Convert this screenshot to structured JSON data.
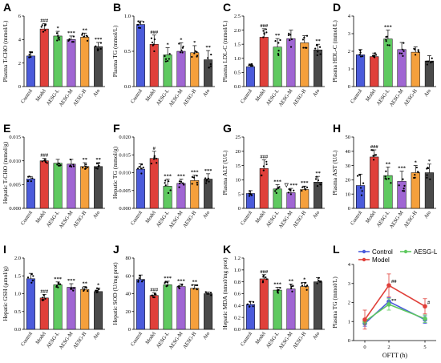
{
  "colors": {
    "Control": "#4b5bdb",
    "Model": "#e0403a",
    "AESG-L": "#5fc960",
    "AESG-M": "#a066d3",
    "AESG-H": "#f5a03c",
    "Ato": "#4a4a4a"
  },
  "chart_data": [
    {
      "id": "A",
      "type": "bar",
      "label": "A",
      "ylabel": "Plasma T-CHO  (mmol/L)",
      "categories": [
        "Control",
        "Model",
        "AESG-L",
        "AESG-M",
        "AESG-H",
        "Ato"
      ],
      "values": [
        2.6,
        4.9,
        4.3,
        4.0,
        4.2,
        3.4
      ],
      "errors": [
        0.35,
        0.45,
        0.4,
        0.3,
        0.35,
        0.35
      ],
      "sig": [
        "",
        "###",
        "*",
        "***",
        "**",
        "***"
      ],
      "ylim": [
        0,
        6
      ],
      "ticks": [
        0,
        2,
        4,
        6
      ],
      "tick_labels": [
        "0",
        "2",
        "4",
        "6"
      ]
    },
    {
      "id": "B",
      "type": "bar",
      "label": "B",
      "ylabel": "Plasma TG  (mmol/L)",
      "categories": [
        "Control",
        "Model",
        "AESG-L",
        "AESG-M",
        "AESG-H",
        "Ato"
      ],
      "values": [
        0.88,
        0.6,
        0.45,
        0.5,
        0.48,
        0.38
      ],
      "errors": [
        0.05,
        0.13,
        0.1,
        0.12,
        0.1,
        0.13
      ],
      "sig": [
        "",
        "###",
        "*",
        "*",
        "*",
        "**"
      ],
      "ylim": [
        0,
        1.0
      ],
      "ticks": [
        0,
        0.5,
        1.0
      ],
      "tick_labels": [
        "0.0",
        "0.5",
        "1.0"
      ]
    },
    {
      "id": "C",
      "type": "bar",
      "label": "C",
      "ylabel": "Plasma LDL-C  (mmol/L)",
      "categories": [
        "Control",
        "Model",
        "AESG-L",
        "AESG-M",
        "AESG-H",
        "Ato"
      ],
      "values": [
        0.7,
        1.75,
        1.4,
        1.7,
        1.55,
        1.3
      ],
      "errors": [
        0.1,
        0.3,
        0.3,
        0.3,
        0.25,
        0.2
      ],
      "sig": [
        "",
        "###",
        "**",
        "",
        "",
        "**"
      ],
      "ylim": [
        0,
        2.5
      ],
      "ticks": [
        0,
        0.5,
        1.0,
        1.5,
        2.0,
        2.5
      ],
      "tick_labels": [
        "0.0",
        "0.5",
        "1.0",
        "1.5",
        "2.0",
        "2.5"
      ]
    },
    {
      "id": "D",
      "type": "bar",
      "label": "D",
      "ylabel": "Plasma HDL-C  (mmol/L)",
      "categories": [
        "Control",
        "Model",
        "AESG-L",
        "AESG-M",
        "AESG-H",
        "Ato"
      ],
      "values": [
        1.8,
        1.7,
        2.7,
        2.1,
        1.95,
        1.45
      ],
      "errors": [
        0.3,
        0.2,
        0.5,
        0.4,
        0.3,
        0.3
      ],
      "sig": [
        "",
        "",
        "***",
        "",
        "",
        ""
      ],
      "ylim": [
        0,
        4
      ],
      "ticks": [
        0,
        1,
        2,
        3,
        4
      ],
      "tick_labels": [
        "0",
        "1",
        "2",
        "3",
        "4"
      ]
    },
    {
      "id": "E",
      "type": "bar",
      "label": "E",
      "ylabel": "Hepatic T-CHO  (mmol/g)",
      "categories": [
        "Control",
        "Model",
        "AESG-L",
        "AESG-M",
        "AESG-H",
        "Ato"
      ],
      "values": [
        0.0062,
        0.01,
        0.0095,
        0.0093,
        0.0088,
        0.0088
      ],
      "errors": [
        0.0005,
        0.0005,
        0.0008,
        0.001,
        0.0008,
        0.0008
      ],
      "sig": [
        "",
        "###",
        "",
        "",
        "**",
        "**"
      ],
      "ylim": [
        0,
        0.015
      ],
      "ticks": [
        0,
        0.005,
        0.01,
        0.015
      ],
      "tick_labels": [
        "0.000",
        "0.005",
        "0.010",
        "0.015"
      ]
    },
    {
      "id": "F",
      "type": "bar",
      "label": "F",
      "ylabel": "Hepatic TG  (mmol/g)",
      "categories": [
        "Control",
        "Model",
        "AESG-L",
        "AESG-M",
        "AESG-H",
        "Ato"
      ],
      "values": [
        0.011,
        0.014,
        0.0062,
        0.007,
        0.0078,
        0.0082
      ],
      "errors": [
        0.0015,
        0.002,
        0.002,
        0.0012,
        0.0015,
        0.0015
      ],
      "sig": [
        "",
        "#",
        "***",
        "***",
        "***",
        "***"
      ],
      "ylim": [
        0,
        0.02
      ],
      "ticks": [
        0,
        0.005,
        0.01,
        0.015,
        0.02
      ],
      "tick_labels": [
        "0.000",
        "0.005",
        "0.010",
        "0.015",
        "0.020"
      ]
    },
    {
      "id": "G",
      "type": "bar",
      "label": "G",
      "ylabel": "Plasma ALT  (U/L)",
      "categories": [
        "Control",
        "Model",
        "AESG-L",
        "AESG-M",
        "AESG-H",
        "Ato"
      ],
      "values": [
        5.2,
        14,
        6.8,
        5.5,
        6.6,
        9.2
      ],
      "errors": [
        1.0,
        3.0,
        1.5,
        1.5,
        1.2,
        2.0
      ],
      "sig": [
        "",
        "###",
        "***",
        "▽ ***",
        "***",
        "**"
      ],
      "ylim": [
        0,
        25
      ],
      "ticks": [
        0,
        5,
        10,
        15,
        20,
        25
      ],
      "tick_labels": [
        "0",
        "5",
        "10",
        "15",
        "20",
        "25"
      ]
    },
    {
      "id": "H",
      "type": "bar",
      "label": "H",
      "ylabel": "Plasma AST  (U/L)",
      "categories": [
        "Control",
        "Model",
        "AESG-L",
        "AESG-M",
        "AESG-H",
        "Ato"
      ],
      "values": [
        16,
        36,
        23,
        19,
        25,
        25
      ],
      "errors": [
        8,
        5,
        6,
        7,
        5,
        6
      ],
      "sig": [
        "",
        "###",
        "**",
        "***",
        "*",
        "*"
      ],
      "ylim": [
        0,
        50
      ],
      "ticks": [
        0,
        10,
        20,
        30,
        40,
        50
      ],
      "tick_labels": [
        "0",
        "10",
        "20",
        "30",
        "40",
        "50"
      ]
    },
    {
      "id": "I",
      "type": "bar",
      "label": "I",
      "ylabel": "Hepatic GSH  (μmol/g)",
      "categories": [
        "Control",
        "Model",
        "AESG-L",
        "AESG-M",
        "AESG-H",
        "Ato"
      ],
      "values": [
        1.42,
        0.88,
        1.25,
        1.18,
        1.12,
        1.06
      ],
      "errors": [
        0.15,
        0.1,
        0.08,
        0.1,
        0.08,
        0.1
      ],
      "sig": [
        "",
        "###",
        "***",
        "***",
        "**",
        "*"
      ],
      "ylim": [
        0,
        2.0
      ],
      "ticks": [
        0,
        0.5,
        1.0,
        1.5,
        2.0
      ],
      "tick_labels": [
        "0.0",
        "0.5",
        "1.0",
        "1.5",
        "2.0"
      ]
    },
    {
      "id": "J",
      "type": "bar",
      "label": "J",
      "ylabel": "Hepatic SOD  (U/mg prot)",
      "categories": [
        "Control",
        "Model",
        "AESG-L",
        "AESG-M",
        "AESG-H",
        "Ato"
      ],
      "values": [
        56,
        38,
        50,
        48,
        46,
        40
      ],
      "errors": [
        5,
        3,
        4,
        3,
        4,
        2
      ],
      "sig": [
        "",
        "###",
        "***",
        "***",
        "**",
        ""
      ],
      "ylim": [
        0,
        80
      ],
      "ticks": [
        0,
        20,
        40,
        60,
        80
      ],
      "tick_labels": [
        "0",
        "20",
        "40",
        "60",
        "80"
      ]
    },
    {
      "id": "K",
      "type": "bar",
      "label": "K",
      "ylabel": "Hepatic MDA  (nmol/mg prot)",
      "categories": [
        "Control",
        "Model",
        "AESG-L",
        "AESG-M",
        "AESG-H",
        "Ato"
      ],
      "values": [
        0.42,
        0.85,
        0.66,
        0.68,
        0.72,
        0.8
      ],
      "errors": [
        0.05,
        0.07,
        0.05,
        0.08,
        0.07,
        0.07
      ],
      "sig": [
        "",
        "###",
        "***",
        "**",
        "*",
        ""
      ],
      "ylim": [
        0,
        1.2
      ],
      "ticks": [
        0,
        0.2,
        0.4,
        0.6,
        0.8,
        1.0,
        1.2
      ],
      "tick_labels": [
        "0.0",
        "0.2",
        "0.4",
        "0.6",
        "0.8",
        "1.0",
        "1.2"
      ]
    },
    {
      "id": "L",
      "type": "line",
      "label": "L",
      "ylabel": "Plasma TG  (mmol/L)",
      "xlabel": "OFTT (h)",
      "x": [
        0,
        2,
        5
      ],
      "xticks": [
        "0",
        "2",
        "5"
      ],
      "ylim": [
        0,
        4
      ],
      "ticks": [
        0,
        1,
        2,
        3,
        4
      ],
      "tick_labels": [
        "0",
        "1",
        "2",
        "3",
        "4"
      ],
      "series": [
        {
          "name": "Control",
          "values": [
            0.9,
            2.05,
            1.1
          ],
          "errors": [
            0.15,
            0.2,
            0.2
          ],
          "sig": [
            "",
            "",
            ""
          ]
        },
        {
          "name": "AESG-L",
          "values": [
            1.0,
            1.9,
            1.15
          ],
          "errors": [
            0.15,
            0.3,
            0.2
          ],
          "sig": [
            "",
            "**",
            ""
          ]
        },
        {
          "name": "Model",
          "values": [
            1.1,
            2.9,
            1.8
          ],
          "errors": [
            0.5,
            0.6,
            0.4
          ],
          "sig": [
            "",
            "##",
            "#"
          ]
        }
      ],
      "legend": [
        "Control",
        "AESG-L",
        "Model"
      ],
      "legend_position": "top"
    }
  ]
}
